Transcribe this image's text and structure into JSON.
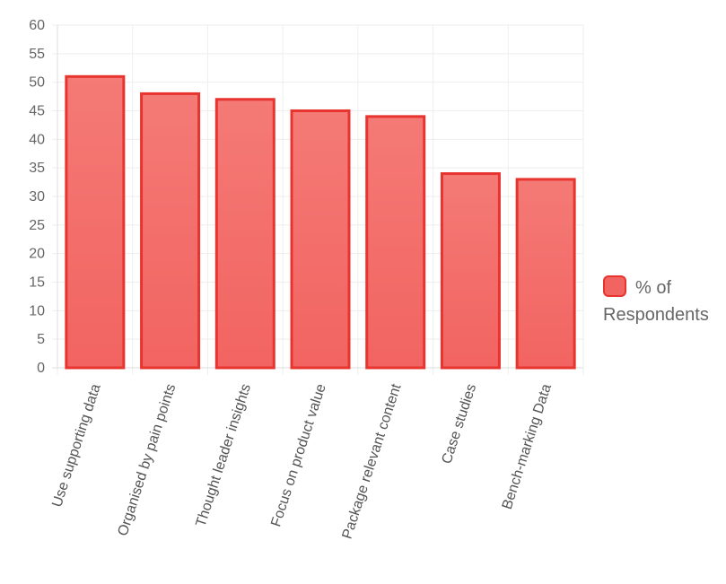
{
  "chart_data": {
    "type": "bar",
    "categories": [
      "Use supporting data",
      "Organised by pain points",
      "Thought leader insights",
      "Focus on product value",
      "Package relevant content",
      "Case studies",
      "Bench-marking Data"
    ],
    "series": [
      {
        "name": "% of Respondents",
        "values": [
          51,
          48,
          47,
          45,
          44,
          34,
          33
        ]
      }
    ],
    "ylim": [
      0,
      60
    ],
    "yticks": [
      0,
      5,
      10,
      15,
      20,
      25,
      30,
      35,
      40,
      45,
      50,
      55,
      60
    ],
    "xlabel": "",
    "ylabel": "",
    "grid": true,
    "legend": "right",
    "colors": {
      "bar_fill": "#f26461",
      "bar_border": "#e8342f",
      "grid": "#eeeeee"
    }
  }
}
